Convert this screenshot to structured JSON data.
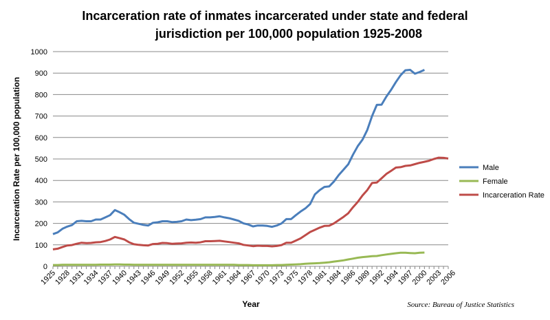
{
  "chart_data": {
    "type": "line",
    "title_line1": "Incarceration rate of inmates incarcerated under state and federal",
    "title_line2": "jurisdiction per 100,000 population 1925-2008",
    "xlabel": "Year",
    "ylabel": "Incarceration Rate per 100,000 population",
    "ylim": [
      0,
      1000
    ],
    "yticks": [
      0,
      100,
      200,
      300,
      400,
      500,
      600,
      700,
      800,
      900,
      1000
    ],
    "xtick_labels": [
      "1925",
      "1928",
      "1931",
      "1934",
      "1937",
      "1940",
      "1943",
      "1946",
      "1949",
      "1952",
      "1955",
      "1958",
      "1961",
      "1964",
      "1967",
      "1970",
      "1973",
      "1975",
      "1978",
      "1981",
      "1984",
      "1986",
      "1989",
      "1992",
      "1994",
      "1997",
      "2000",
      "2003",
      "2006"
    ],
    "category_count": 84,
    "grid": true,
    "legend_position": "right",
    "source": "Source: Bureau of Justice Statistics",
    "series": [
      {
        "name": "Male",
        "color": "#4a7ebb",
        "values": [
          150,
          158,
          175,
          185,
          192,
          210,
          212,
          210,
          210,
          218,
          218,
          228,
          238,
          262,
          252,
          240,
          220,
          203,
          198,
          193,
          190,
          203,
          205,
          210,
          210,
          206,
          207,
          210,
          218,
          215,
          217,
          220,
          228,
          228,
          230,
          233,
          228,
          224,
          218,
          212,
          200,
          195,
          186,
          190,
          190,
          188,
          184,
          190,
          200,
          220,
          220,
          238,
          255,
          270,
          290,
          335,
          355,
          370,
          372,
          395,
          425,
          450,
          475,
          520,
          560,
          590,
          635,
          700,
          752,
          753,
          790,
          822,
          858,
          890,
          913,
          915,
          897,
          905,
          915
        ]
      },
      {
        "name": "Female",
        "color": "#98b954",
        "values": [
          6,
          6,
          7,
          7,
          7,
          7,
          7,
          7,
          7,
          7,
          8,
          8,
          8,
          9,
          9,
          8,
          8,
          7,
          7,
          7,
          7,
          7,
          7,
          7,
          7,
          7,
          7,
          7,
          7,
          7,
          7,
          7,
          7,
          7,
          7,
          7,
          7,
          7,
          7,
          6,
          6,
          6,
          5,
          5,
          5,
          5,
          5,
          6,
          6,
          7,
          8,
          9,
          10,
          12,
          13,
          14,
          15,
          17,
          19,
          22,
          25,
          28,
          32,
          36,
          40,
          43,
          45,
          47,
          48,
          52,
          55,
          58,
          61,
          63,
          63,
          62,
          61,
          63,
          64
        ]
      },
      {
        "name": "Incarceration Rate",
        "color": "#be4b48",
        "values": [
          79,
          82,
          90,
          97,
          99,
          105,
          110,
          108,
          109,
          112,
          113,
          118,
          125,
          137,
          131,
          125,
          112,
          103,
          100,
          98,
          97,
          104,
          105,
          109,
          108,
          105,
          106,
          107,
          110,
          111,
          110,
          112,
          117,
          117,
          118,
          119,
          116,
          113,
          110,
          107,
          100,
          97,
          94,
          96,
          95,
          95,
          93,
          95,
          99,
          110,
          110,
          120,
          130,
          145,
          160,
          170,
          180,
          188,
          189,
          200,
          215,
          230,
          247,
          275,
          300,
          330,
          355,
          388,
          390,
          410,
          430,
          445,
          460,
          462,
          468,
          470,
          476,
          482,
          487,
          492,
          500,
          506,
          505,
          502
        ]
      }
    ]
  }
}
